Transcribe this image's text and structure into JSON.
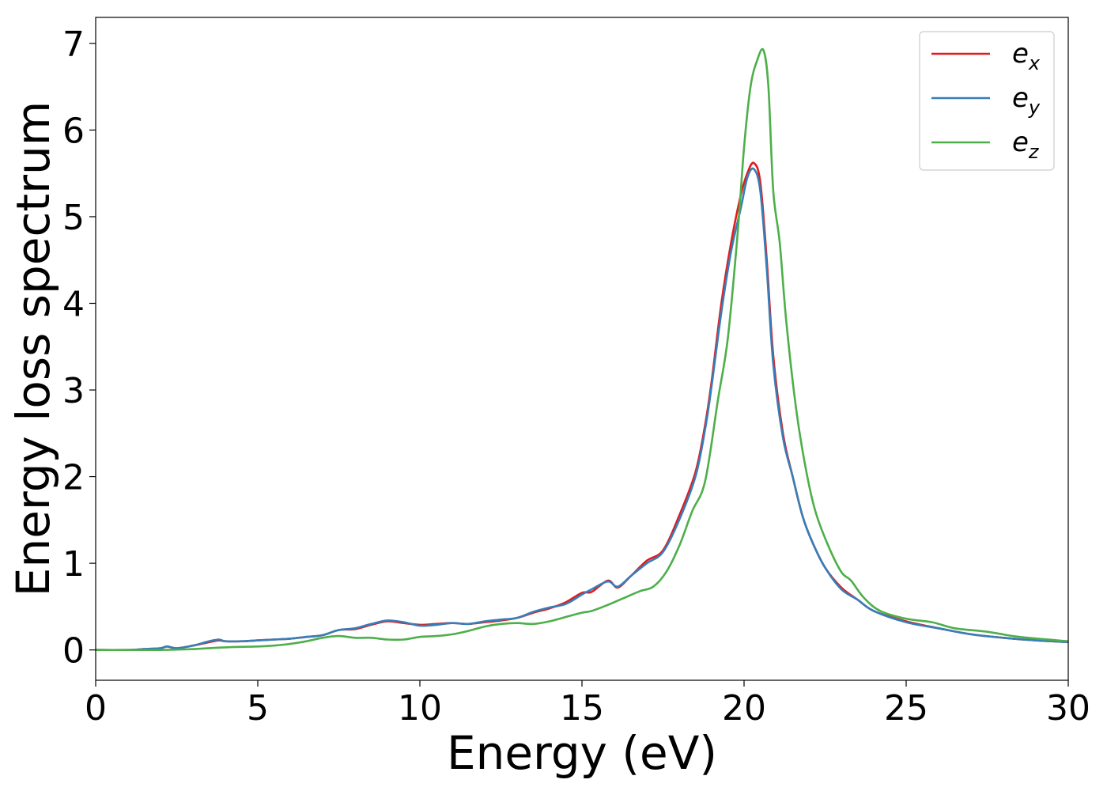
{
  "chart_data": {
    "type": "line",
    "title": "",
    "xlabel": "Energy (eV)",
    "ylabel": "Energy loss spectrum",
    "xlim": [
      0,
      30
    ],
    "ylim": [
      -0.35,
      7.3
    ],
    "xticks": [
      0,
      5,
      10,
      15,
      20,
      25,
      30
    ],
    "xtick_labels": [
      "0",
      "5",
      "10",
      "15",
      "20",
      "25",
      "30"
    ],
    "yticks": [
      0,
      1,
      2,
      3,
      4,
      5,
      6,
      7
    ],
    "ytick_labels": [
      "0",
      "1",
      "2",
      "3",
      "4",
      "5",
      "6",
      "7"
    ],
    "grid": false,
    "legend_position": "top-right",
    "series": [
      {
        "name": "e_x",
        "legend_base": "e",
        "legend_sub": "x",
        "color": "#e41a1c",
        "x": [
          0,
          1,
          1.5,
          2,
          2.2,
          2.5,
          3,
          3.5,
          3.8,
          4,
          4.5,
          5,
          5.5,
          6,
          6.5,
          7,
          7.5,
          8,
          8.5,
          9,
          9.5,
          10,
          10.5,
          11,
          11.5,
          12,
          12.5,
          13,
          13.5,
          14,
          14.5,
          15,
          15.3,
          15.8,
          16.1,
          16.5,
          17,
          17.5,
          18,
          18.5,
          18.8,
          19,
          19.3,
          19.6,
          19.9,
          20.1,
          20.3,
          20.5,
          20.7,
          20.9,
          21.2,
          21.5,
          21.8,
          22.1,
          22.5,
          23,
          23.5,
          24,
          25,
          26,
          27,
          28,
          29,
          30
        ],
        "y": [
          0,
          0,
          0.01,
          0.02,
          0.04,
          0.02,
          0.05,
          0.09,
          0.11,
          0.1,
          0.1,
          0.11,
          0.12,
          0.13,
          0.15,
          0.17,
          0.23,
          0.24,
          0.29,
          0.33,
          0.31,
          0.29,
          0.3,
          0.31,
          0.3,
          0.32,
          0.34,
          0.37,
          0.43,
          0.48,
          0.55,
          0.66,
          0.67,
          0.8,
          0.72,
          0.85,
          1.03,
          1.15,
          1.55,
          2.05,
          2.6,
          3.1,
          4.0,
          4.7,
          5.25,
          5.5,
          5.62,
          5.4,
          4.5,
          3.4,
          2.5,
          2.0,
          1.55,
          1.25,
          0.95,
          0.72,
          0.58,
          0.45,
          0.33,
          0.25,
          0.18,
          0.14,
          0.11,
          0.09
        ]
      },
      {
        "name": "e_y",
        "legend_base": "e",
        "legend_sub": "y",
        "color": "#377eb8",
        "x": [
          0,
          1,
          1.5,
          2,
          2.2,
          2.5,
          3,
          3.5,
          3.8,
          4,
          4.5,
          5,
          5.5,
          6,
          6.5,
          7,
          7.5,
          8,
          8.5,
          9,
          9.5,
          10,
          10.5,
          11,
          11.5,
          12,
          12.5,
          13,
          13.5,
          14,
          14.5,
          15,
          15.3,
          15.8,
          16.1,
          16.5,
          17,
          17.5,
          18,
          18.5,
          18.8,
          19,
          19.3,
          19.6,
          19.9,
          20.1,
          20.3,
          20.5,
          20.7,
          20.9,
          21.2,
          21.5,
          21.8,
          22.1,
          22.5,
          23,
          23.5,
          24,
          25,
          26,
          27,
          28,
          29,
          30
        ],
        "y": [
          0,
          0,
          0.01,
          0.02,
          0.04,
          0.02,
          0.05,
          0.1,
          0.12,
          0.1,
          0.1,
          0.11,
          0.12,
          0.13,
          0.15,
          0.17,
          0.23,
          0.25,
          0.3,
          0.34,
          0.32,
          0.28,
          0.29,
          0.31,
          0.3,
          0.33,
          0.35,
          0.37,
          0.44,
          0.49,
          0.53,
          0.64,
          0.7,
          0.79,
          0.73,
          0.85,
          1.0,
          1.13,
          1.5,
          2.0,
          2.55,
          3.05,
          3.9,
          4.6,
          5.1,
          5.45,
          5.55,
          5.3,
          4.4,
          3.3,
          2.45,
          2.0,
          1.55,
          1.25,
          0.95,
          0.7,
          0.58,
          0.45,
          0.32,
          0.25,
          0.18,
          0.14,
          0.11,
          0.09
        ]
      },
      {
        "name": "e_z",
        "legend_base": "e",
        "legend_sub": "z",
        "color": "#4daf4a",
        "x": [
          0,
          2,
          3,
          4,
          5,
          5.5,
          6,
          6.5,
          7,
          7.5,
          8,
          8.5,
          9,
          9.5,
          10,
          10.5,
          11,
          11.5,
          12,
          12.5,
          13,
          13.5,
          14,
          14.5,
          15,
          15.3,
          15.8,
          16.3,
          16.8,
          17.2,
          17.6,
          18,
          18.4,
          18.8,
          19.2,
          19.5,
          19.8,
          20,
          20.2,
          20.4,
          20.6,
          20.75,
          20.9,
          21.1,
          21.3,
          21.6,
          21.9,
          22.2,
          22.6,
          23,
          23.3,
          23.7,
          24.2,
          25,
          25.8,
          26.5,
          27.5,
          28.5,
          30
        ],
        "y": [
          0,
          0,
          0.01,
          0.03,
          0.04,
          0.05,
          0.07,
          0.1,
          0.14,
          0.16,
          0.14,
          0.14,
          0.12,
          0.12,
          0.15,
          0.16,
          0.18,
          0.22,
          0.27,
          0.3,
          0.31,
          0.3,
          0.33,
          0.38,
          0.43,
          0.45,
          0.52,
          0.6,
          0.68,
          0.73,
          0.9,
          1.2,
          1.6,
          1.95,
          2.9,
          3.6,
          4.8,
          5.8,
          6.5,
          6.8,
          6.92,
          6.5,
          5.3,
          4.7,
          3.8,
          2.8,
          2.1,
          1.6,
          1.2,
          0.9,
          0.8,
          0.6,
          0.45,
          0.36,
          0.32,
          0.25,
          0.21,
          0.15,
          0.1
        ]
      }
    ]
  }
}
